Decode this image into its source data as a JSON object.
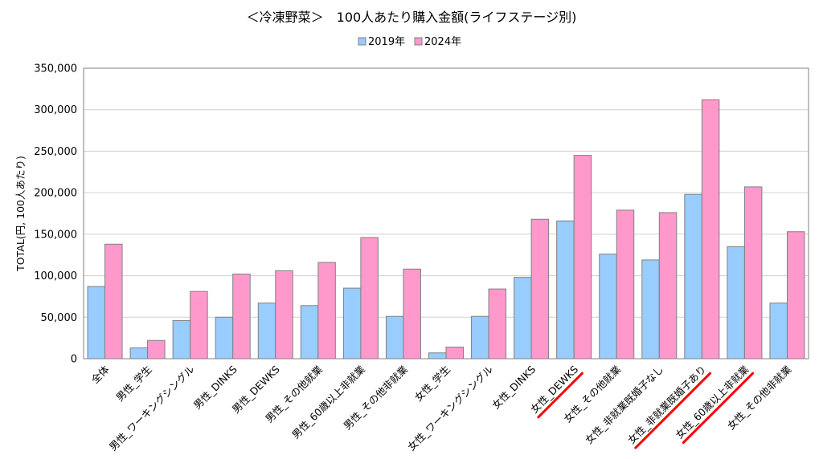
{
  "chart_data": {
    "type": "bar",
    "title": "＜冷凍野菜＞　100人あたり購入金額(ライフステージ別)",
    "ylabel": "TOTAL(円, 100人あたり)",
    "xlabel": "",
    "ylim": [
      0,
      350000
    ],
    "yticks": [
      0,
      50000,
      100000,
      150000,
      200000,
      250000,
      300000,
      350000
    ],
    "ytick_labels": [
      "0",
      "50,000",
      "100,000",
      "150,000",
      "200,000",
      "250,000",
      "300,000",
      "350,000"
    ],
    "grid": true,
    "legend_position": "top-center",
    "categories": [
      "全体",
      "男性_学生",
      "男性_ワーキングシングル",
      "男性_DINKS",
      "男性_DEWKS",
      "男性_その他就業",
      "男性_60歳以上非就業",
      "男性_その他非就業",
      "女性_学生",
      "女性_ワーキングシングル",
      "女性_DINKS",
      "女性_DEWKS",
      "女性_その他就業",
      "女性_非就業既婚子なし",
      "女性_非就業既婚子あり",
      "女性_60歳以上非就業",
      "女性_その他非就業"
    ],
    "series": [
      {
        "name": "2019年",
        "color": "#99CCFF",
        "values": [
          87000,
          13000,
          46000,
          50000,
          67000,
          64000,
          85000,
          51000,
          7000,
          51000,
          98000,
          166000,
          126000,
          119000,
          198000,
          135000,
          67000
        ]
      },
      {
        "name": "2024年",
        "color": "#FF99CC",
        "values": [
          138000,
          22000,
          81000,
          102000,
          106000,
          116000,
          146000,
          108000,
          14000,
          84000,
          168000,
          245000,
          179000,
          176000,
          312000,
          207000,
          153000
        ]
      }
    ],
    "highlighted_categories": [
      "女性_DEWKS",
      "女性_非就業既婚子あり",
      "女性_60歳以上非就業"
    ],
    "highlight_color": "#FF0000"
  }
}
